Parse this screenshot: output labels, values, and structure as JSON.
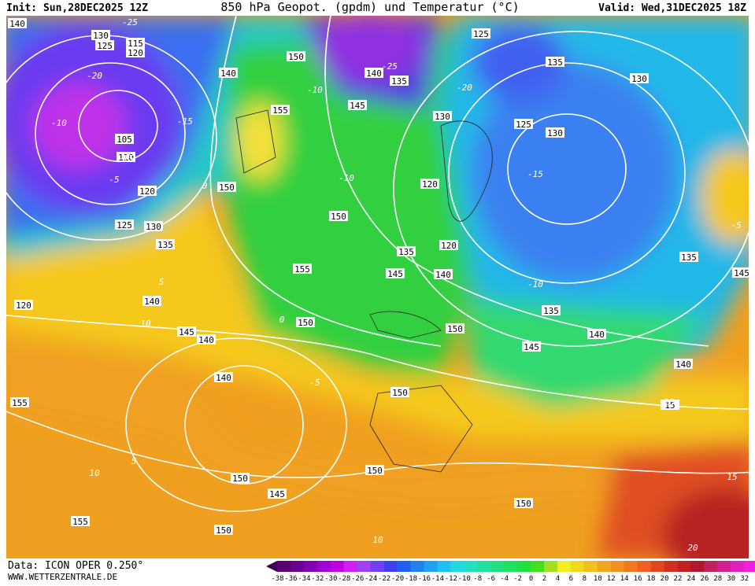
{
  "header": {
    "init": "Init: Sun,28DEC2025 12Z",
    "title": "850 hPa Geopot. (gpdm) und Temperatur (°C)",
    "valid": "Valid: Wed,31DEC2025 18Z"
  },
  "footer": {
    "data": "Data: ICON OPER 0.250°",
    "site": "WWW.WETTERZENTRALE.DE"
  },
  "colorbar": {
    "ticks": [
      -38,
      -36,
      -34,
      -32,
      -30,
      -28,
      -26,
      -24,
      -22,
      -20,
      -18,
      -16,
      -14,
      -12,
      -10,
      -8,
      -6,
      -4,
      -2,
      0,
      2,
      4,
      6,
      8,
      10,
      12,
      14,
      16,
      18,
      20,
      22,
      24,
      26,
      28,
      30,
      32
    ]
  },
  "geopotential_labels": [
    "140",
    "130",
    "125",
    "115",
    "120",
    "105",
    "110",
    "120",
    "125",
    "130",
    "135",
    "140",
    "150",
    "155",
    "150",
    "150",
    "155",
    "150",
    "145",
    "140",
    "145",
    "140",
    "150",
    "150",
    "155",
    "140",
    "145",
    "155",
    "150",
    "150",
    "125",
    "135",
    "130",
    "125",
    "130",
    "135",
    "135",
    "140",
    "145",
    "135",
    "130",
    "135",
    "140",
    "145",
    "140",
    "150",
    "15",
    "145",
    "140",
    "150",
    "120",
    "120",
    "120"
  ],
  "temperature_labels": [
    "-25",
    "-20",
    "-15",
    "-10",
    "-5",
    "0",
    "5",
    "10",
    "-15",
    "-10",
    "-20",
    "-25",
    "-15",
    "-10",
    "-5",
    "0",
    "5",
    "10",
    "15",
    "20",
    "10",
    "15",
    "-5",
    "-10"
  ]
}
